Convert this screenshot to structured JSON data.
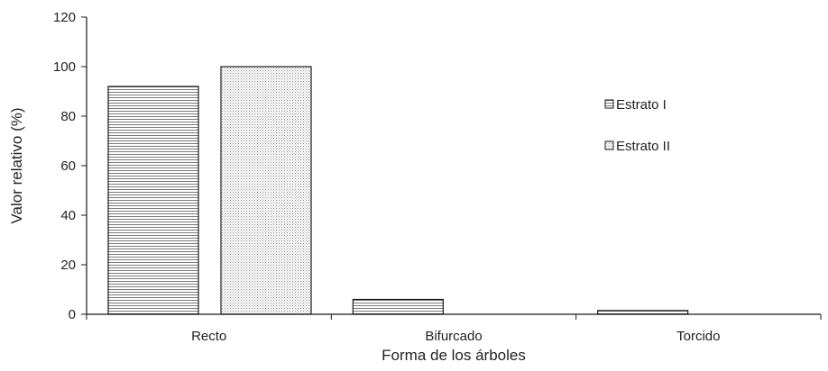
{
  "chart_data": {
    "type": "bar",
    "categories": [
      "Recto",
      "Bifurcado",
      "Torcido"
    ],
    "series": [
      {
        "name": "Estrato I",
        "values": [
          92,
          6,
          1.5
        ]
      },
      {
        "name": "Estrato II",
        "values": [
          100,
          0,
          0
        ]
      }
    ],
    "xlabel": "Forma de los árboles",
    "ylabel": "Valor relativo (%)",
    "ylim": [
      0,
      120
    ],
    "yticks": [
      0,
      20,
      40,
      60,
      80,
      100,
      120
    ],
    "grid": false,
    "legend_position": "right",
    "colors": {
      "bar_fill": "#ffffff",
      "bar_pattern": "#8c8c8c",
      "stroke": "#1a1a1a"
    }
  }
}
